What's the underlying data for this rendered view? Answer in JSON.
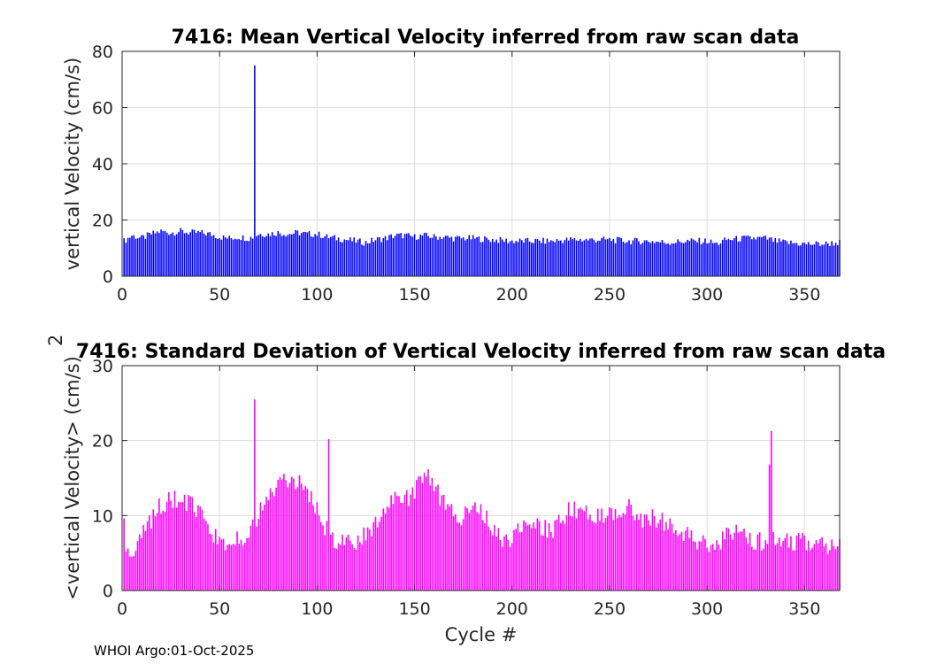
{
  "chart_data": [
    {
      "type": "bar",
      "title": "7416: Mean Vertical Velocity inferred from raw scan data",
      "xlabel": "",
      "ylabel": "vertical Velocity (cm/s)",
      "xlim": [
        0,
        368
      ],
      "ylim": [
        0,
        80
      ],
      "xticks": [
        0,
        50,
        100,
        150,
        200,
        250,
        300,
        350
      ],
      "yticks": [
        0,
        20,
        40,
        60,
        80
      ],
      "grid": true,
      "color": "#0000ff",
      "baseline_anchors": [
        [
          1,
          12.5
        ],
        [
          5,
          14.5
        ],
        [
          10,
          13.5
        ],
        [
          15,
          15.0
        ],
        [
          20,
          16.0
        ],
        [
          25,
          15.5
        ],
        [
          30,
          16.0
        ],
        [
          35,
          15.5
        ],
        [
          40,
          15.5
        ],
        [
          45,
          15.0
        ],
        [
          50,
          14.0
        ],
        [
          55,
          13.5
        ],
        [
          60,
          14.0
        ],
        [
          65,
          13.5
        ],
        [
          67,
          14.0
        ],
        [
          70,
          15.0
        ],
        [
          75,
          15.0
        ],
        [
          80,
          15.5
        ],
        [
          85,
          15.0
        ],
        [
          90,
          15.5
        ],
        [
          95,
          15.0
        ],
        [
          100,
          15.0
        ],
        [
          105,
          14.0
        ],
        [
          110,
          13.5
        ],
        [
          115,
          13.0
        ],
        [
          120,
          12.5
        ],
        [
          125,
          12.0
        ],
        [
          130,
          13.0
        ],
        [
          135,
          13.5
        ],
        [
          140,
          14.5
        ],
        [
          145,
          14.5
        ],
        [
          150,
          14.0
        ],
        [
          155,
          14.5
        ],
        [
          160,
          14.0
        ],
        [
          165,
          14.0
        ],
        [
          170,
          13.5
        ],
        [
          180,
          13.5
        ],
        [
          190,
          13.0
        ],
        [
          200,
          12.5
        ],
        [
          210,
          12.5
        ],
        [
          220,
          12.5
        ],
        [
          230,
          13.0
        ],
        [
          240,
          13.0
        ],
        [
          250,
          13.0
        ],
        [
          260,
          12.5
        ],
        [
          270,
          12.5
        ],
        [
          280,
          12.0
        ],
        [
          290,
          12.5
        ],
        [
          300,
          12.5
        ],
        [
          305,
          11.5
        ],
        [
          310,
          13.0
        ],
        [
          320,
          13.5
        ],
        [
          330,
          13.5
        ],
        [
          335,
          12.5
        ],
        [
          340,
          12.0
        ],
        [
          350,
          11.5
        ],
        [
          360,
          11.5
        ],
        [
          368,
          12.0
        ]
      ],
      "spikes": [
        {
          "x": 68,
          "y": 75
        }
      ],
      "noise_amplitude": 1.2
    },
    {
      "type": "bar",
      "title": "7416: Standard Deviation of Vertical Velocity inferred from raw scan data",
      "xlabel": "Cycle #",
      "ylabel": "<vertical Velocity> (cm/s)",
      "ylabel_superscript": "2",
      "xlim": [
        0,
        368
      ],
      "ylim": [
        0,
        30
      ],
      "xticks": [
        0,
        50,
        100,
        150,
        200,
        250,
        300,
        350
      ],
      "yticks": [
        0,
        10,
        20,
        30
      ],
      "grid": true,
      "color": "#ff00ff",
      "baseline_anchors": [
        [
          1,
          8.5
        ],
        [
          2,
          5.0
        ],
        [
          4,
          5.5
        ],
        [
          8,
          6.0
        ],
        [
          12,
          8.0
        ],
        [
          16,
          10.0
        ],
        [
          20,
          11.5
        ],
        [
          25,
          12.0
        ],
        [
          30,
          12.0
        ],
        [
          35,
          11.5
        ],
        [
          40,
          10.0
        ],
        [
          44,
          8.5
        ],
        [
          48,
          7.0
        ],
        [
          52,
          6.0
        ],
        [
          56,
          6.5
        ],
        [
          60,
          7.5
        ],
        [
          64,
          7.0
        ],
        [
          66,
          8.5
        ],
        [
          70,
          10.0
        ],
        [
          75,
          12.5
        ],
        [
          80,
          14.0
        ],
        [
          85,
          15.0
        ],
        [
          90,
          14.5
        ],
        [
          95,
          13.0
        ],
        [
          100,
          11.0
        ],
        [
          105,
          8.0
        ],
        [
          110,
          6.5
        ],
        [
          115,
          6.5
        ],
        [
          120,
          6.5
        ],
        [
          125,
          7.5
        ],
        [
          130,
          9.0
        ],
        [
          135,
          11.0
        ],
        [
          140,
          12.0
        ],
        [
          145,
          12.0
        ],
        [
          150,
          13.0
        ],
        [
          155,
          15.5
        ],
        [
          160,
          14.0
        ],
        [
          165,
          11.5
        ],
        [
          170,
          10.0
        ],
        [
          175,
          10.0
        ],
        [
          180,
          11.0
        ],
        [
          185,
          10.5
        ],
        [
          190,
          8.5
        ],
        [
          195,
          6.5
        ],
        [
          200,
          7.0
        ],
        [
          205,
          9.0
        ],
        [
          210,
          9.5
        ],
        [
          215,
          8.5
        ],
        [
          220,
          8.0
        ],
        [
          225,
          9.5
        ],
        [
          230,
          11.0
        ],
        [
          235,
          10.0
        ],
        [
          240,
          10.5
        ],
        [
          245,
          10.0
        ],
        [
          250,
          10.5
        ],
        [
          255,
          10.0
        ],
        [
          260,
          11.0
        ],
        [
          265,
          9.5
        ],
        [
          270,
          10.0
        ],
        [
          275,
          9.5
        ],
        [
          280,
          9.0
        ],
        [
          285,
          8.5
        ],
        [
          290,
          7.5
        ],
        [
          295,
          6.5
        ],
        [
          300,
          6.0
        ],
        [
          305,
          5.5
        ],
        [
          310,
          7.5
        ],
        [
          315,
          7.5
        ],
        [
          320,
          7.0
        ],
        [
          325,
          6.5
        ],
        [
          330,
          6.5
        ],
        [
          335,
          6.5
        ],
        [
          340,
          6.5
        ],
        [
          345,
          6.5
        ],
        [
          350,
          6.5
        ],
        [
          355,
          6.0
        ],
        [
          360,
          6.0
        ],
        [
          368,
          6.5
        ]
      ],
      "spikes": [
        {
          "x": 68,
          "y": 25.5
        },
        {
          "x": 106,
          "y": 20.2
        },
        {
          "x": 332,
          "y": 16.8
        },
        {
          "x": 333,
          "y": 21.3
        }
      ],
      "noise_amplitude": 1.3
    }
  ],
  "footer": {
    "text": "WHOI Argo:01-Oct-2025"
  }
}
